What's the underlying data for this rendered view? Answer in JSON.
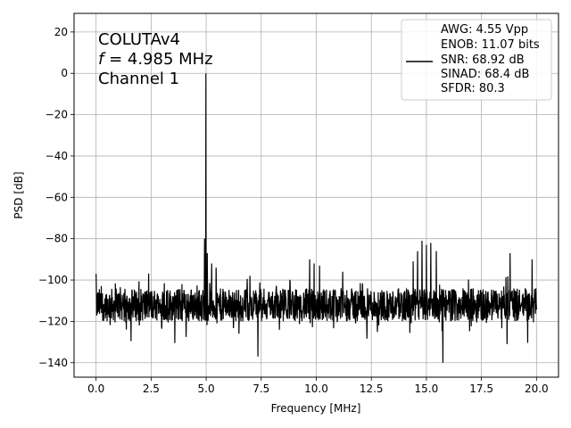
{
  "chart_data": {
    "type": "line",
    "xlabel": "Frequency [MHz]",
    "ylabel": "PSD [dB]",
    "xlim": [
      -1,
      21
    ],
    "ylim": [
      -147,
      29
    ],
    "xticks": [
      0.0,
      2.5,
      5.0,
      7.5,
      10.0,
      12.5,
      15.0,
      17.5,
      20.0
    ],
    "xtick_labels": [
      "0.0",
      "2.5",
      "5.0",
      "7.5",
      "10.0",
      "12.5",
      "15.0",
      "17.5",
      "20.0"
    ],
    "yticks": [
      20,
      0,
      -20,
      -40,
      -60,
      -80,
      -100,
      -120,
      -140
    ],
    "ytick_labels": [
      "20",
      "0",
      "−20",
      "−40",
      "−60",
      "−80",
      "−100",
      "−120",
      "−140"
    ],
    "grid": true,
    "annotation": {
      "line1": "COLUTAv4",
      "line2_italic": "f",
      "line2_rest": " = 4.985 MHz",
      "line3": "Channel 1"
    },
    "legend": {
      "placement": "upper-right",
      "lines": [
        "AWG: 4.55 Vpp",
        "ENOB: 11.07 bits",
        "SNR: 68.92 dB",
        "SINAD: 68.4 dB",
        "SFDR: 80.3"
      ]
    },
    "series": [
      {
        "color": "#000000",
        "noise_floor_db": -112,
        "noise_spread_db": 8,
        "peak": {
          "x": 4.985,
          "y": 0
        },
        "spurs": [
          {
            "x": 0.0,
            "y": -97
          },
          {
            "x": 4.92,
            "y": -80
          },
          {
            "x": 5.05,
            "y": -87
          },
          {
            "x": 5.25,
            "y": -92
          },
          {
            "x": 5.45,
            "y": -94
          },
          {
            "x": 7.35,
            "y": -137
          },
          {
            "x": 9.7,
            "y": -90
          },
          {
            "x": 9.9,
            "y": -92
          },
          {
            "x": 10.15,
            "y": -93
          },
          {
            "x": 11.2,
            "y": -96
          },
          {
            "x": 14.4,
            "y": -91
          },
          {
            "x": 14.6,
            "y": -86
          },
          {
            "x": 14.8,
            "y": -81
          },
          {
            "x": 15.0,
            "y": -83
          },
          {
            "x": 15.2,
            "y": -82
          },
          {
            "x": 15.45,
            "y": -86
          },
          {
            "x": 15.75,
            "y": -140
          },
          {
            "x": 18.8,
            "y": -87
          },
          {
            "x": 19.8,
            "y": -90
          }
        ]
      }
    ]
  }
}
